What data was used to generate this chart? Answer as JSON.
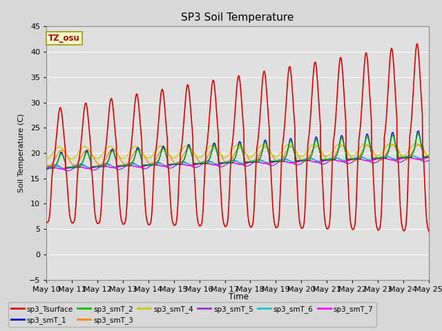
{
  "title": "SP3 Soil Temperature",
  "ylabel": "Soil Temperature (C)",
  "xlabel": "Time",
  "ylim": [
    -5,
    45
  ],
  "xlim": [
    0,
    15
  ],
  "fig_bg": "#d8d8d8",
  "plot_bg": "#e0e0e0",
  "timezone_label": "TZ_osu",
  "x_tick_labels": [
    "May 10",
    "May 11",
    "May 12",
    "May 13",
    "May 14",
    "May 15",
    "May 16",
    "May 17",
    "May 18",
    "May 19",
    "May 20",
    "May 21",
    "May 22",
    "May 23",
    "May 24",
    "May 25"
  ],
  "series": {
    "sp3_Tsurface": {
      "color": "#dd0000",
      "lw": 1.2
    },
    "sp3_smT_1": {
      "color": "#0000cc",
      "lw": 1.0
    },
    "sp3_smT_2": {
      "color": "#00bb00",
      "lw": 1.0
    },
    "sp3_smT_3": {
      "color": "#ff8800",
      "lw": 1.0
    },
    "sp3_smT_4": {
      "color": "#cccc00",
      "lw": 1.0
    },
    "sp3_smT_5": {
      "color": "#9933cc",
      "lw": 1.0
    },
    "sp3_smT_6": {
      "color": "#00cccc",
      "lw": 1.0
    },
    "sp3_smT_7": {
      "color": "#ff00ff",
      "lw": 1.2
    }
  }
}
